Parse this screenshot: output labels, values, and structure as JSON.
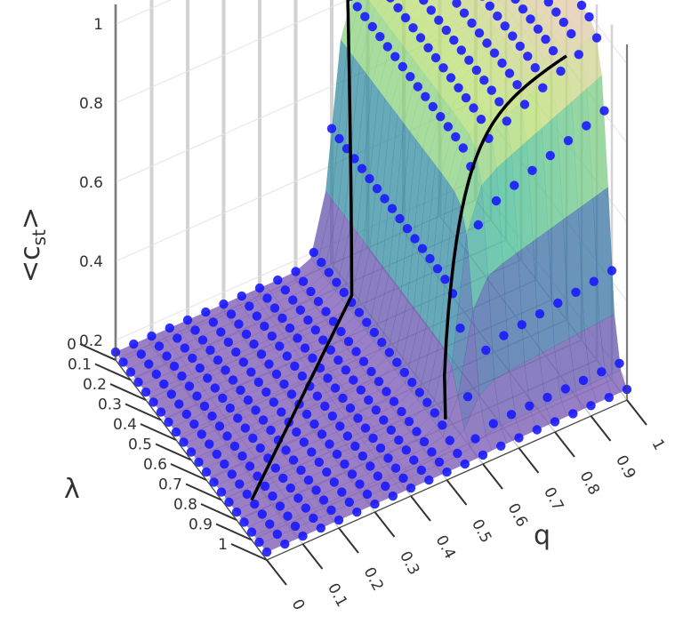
{
  "chart_data": {
    "type": "scatter",
    "subtype": "3d-surface-with-points",
    "title": "",
    "axes": {
      "x": {
        "label": "q",
        "ticks": [
          0,
          0.1,
          0.2,
          0.3,
          0.4,
          0.5,
          0.6,
          0.7,
          0.8,
          0.9,
          1
        ],
        "range": [
          0,
          1
        ]
      },
      "y": {
        "label": "λ",
        "ticks": [
          0,
          0.1,
          0.2,
          0.3,
          0.4,
          0.5,
          0.6,
          0.7,
          0.8,
          0.9,
          1
        ],
        "range": [
          0,
          1
        ]
      },
      "z": {
        "label_main": "<c",
        "label_sub": "st",
        "label_end": ">",
        "ticks": [
          0.2,
          0.4,
          0.6,
          0.8,
          1
        ],
        "range": [
          0.15,
          1.05
        ]
      }
    },
    "grid": true,
    "colorscale": "viridis-to-pink",
    "surface_description": "Surface equals about 0.17 where q is below about 0.58 or lambda is above about 0.88; rises steeply toward 1 in the corner of high q and low lambda.",
    "marker_color": "#1a1aff",
    "surface_color_low": "#7a4fb0",
    "surface_color_high": "#f6bcc8",
    "curve_color": "#000000",
    "curves": [
      {
        "name": "",
        "description": "Transition line crossing the floor from the lambda-axis side and bending up the wall near q ≈ 0.55–0.6"
      },
      {
        "name": "",
        "description": "Level curve near <c_st> ≈ 0.82 on the raised wall"
      }
    ]
  }
}
